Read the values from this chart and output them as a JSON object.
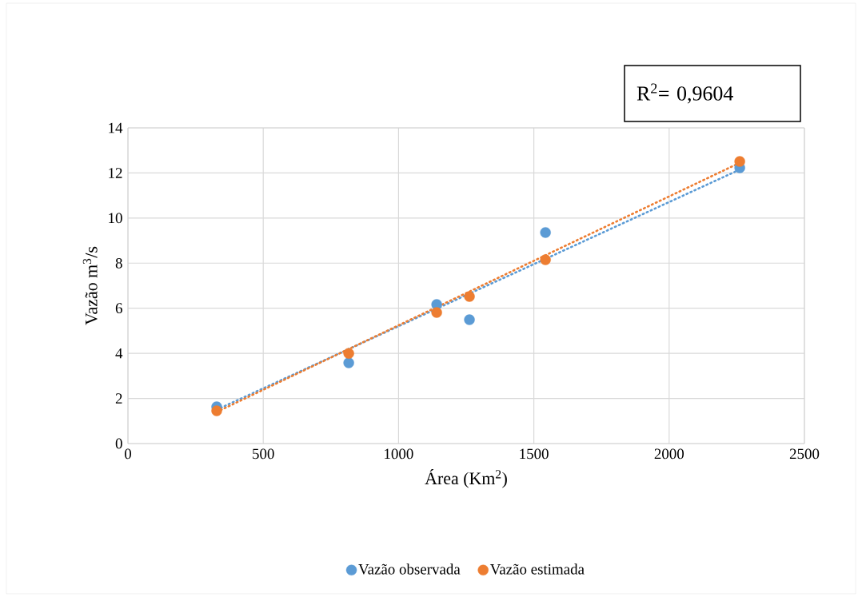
{
  "chart_data": {
    "type": "scatter",
    "xlabel": "Área (Km$^{2}$)",
    "ylabel": "Vazão m$^{3}$/s",
    "x": [
      328,
      816,
      1141,
      1262,
      1543,
      2261
    ],
    "series": [
      {
        "name": "Vazão observada",
        "color": "#5b9bd5",
        "values": [
          1.63,
          3.58,
          6.17,
          5.49,
          9.36,
          12.23
        ],
        "marker": "circle"
      },
      {
        "name": "Vazão estimada",
        "color": "#ed7d31",
        "values": [
          1.45,
          4.0,
          5.81,
          6.52,
          8.15,
          12.51
        ],
        "marker": "circle"
      },
      {
        "type": "line",
        "color": "#5b9bd5",
        "values": [
          1.5,
          4.19,
          5.98,
          6.65,
          8.19,
          12.15
        ],
        "line_style": "dotted",
        "marker": "none"
      },
      {
        "type": "line",
        "color": "#ed7d31",
        "values": [
          1.4,
          4.19,
          6.05,
          6.74,
          8.35,
          12.45
        ],
        "line_style": "dotted",
        "marker": "none"
      }
    ],
    "xlim": [
      0,
      2500
    ],
    "xticks": [
      0,
      500,
      1000,
      1500,
      2000,
      2500
    ],
    "ylim": [
      0,
      14
    ],
    "yticks": [
      0,
      2,
      4,
      6,
      8,
      10,
      12,
      14
    ],
    "grid": true,
    "legend": "bottom",
    "annotations": [
      "R$^{2}$= 0,9604"
    ]
  }
}
